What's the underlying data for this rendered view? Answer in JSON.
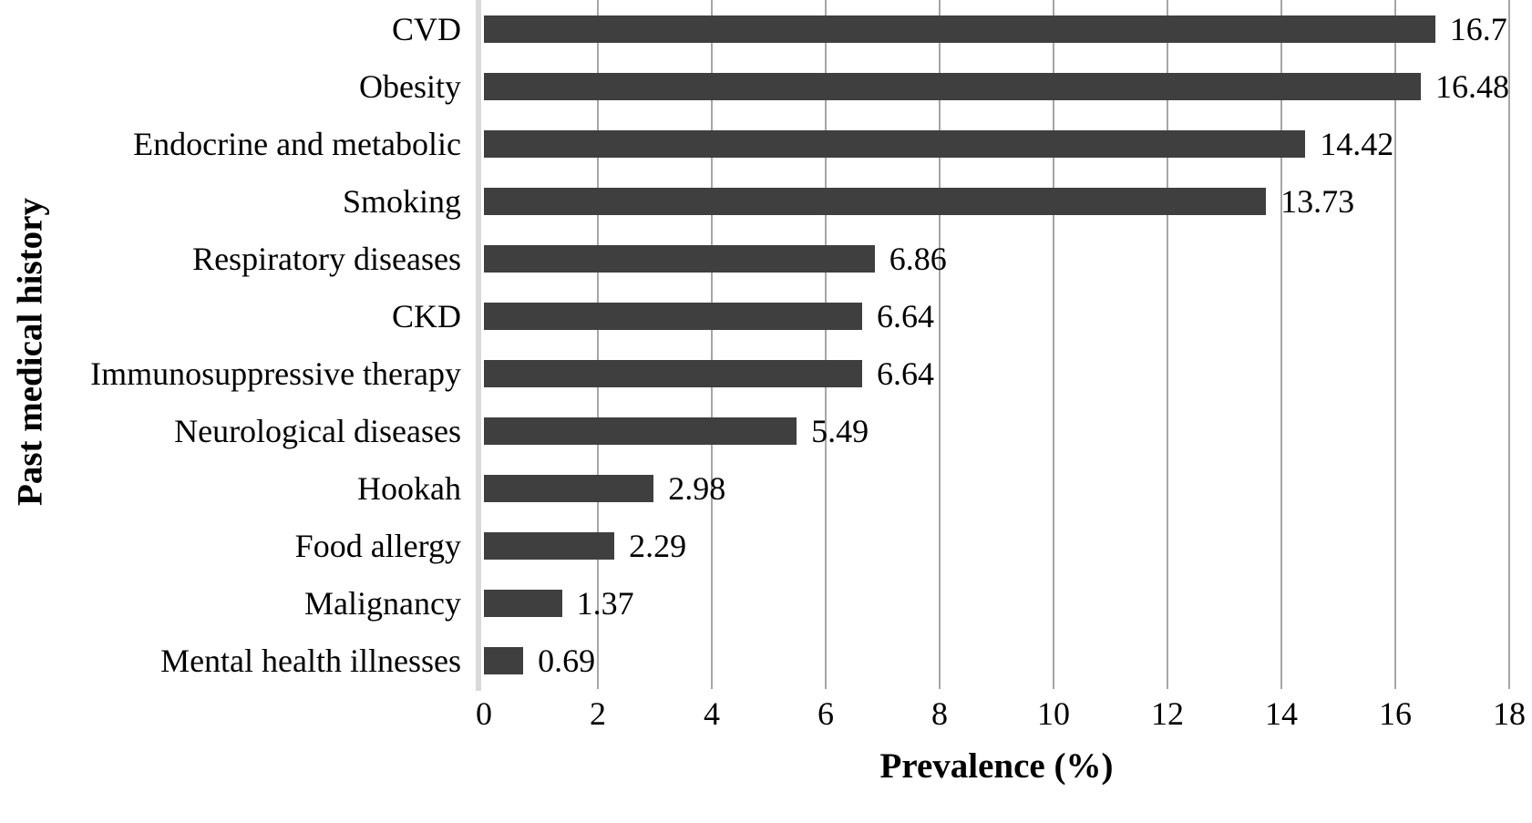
{
  "chart_data": {
    "type": "bar",
    "orientation": "horizontal",
    "title": "",
    "xlabel": "Prevalence (%)",
    "ylabel": "Past medical history",
    "categories": [
      "CVD",
      "Obesity",
      "Endocrine and metabolic",
      "Smoking",
      "Respiratory diseases",
      "CKD",
      "Immunosuppressive therapy",
      "Neurological diseases",
      "Hookah",
      "Food allergy",
      "Malignancy",
      "Mental health illnesses"
    ],
    "values": [
      16.7,
      16.48,
      14.42,
      13.73,
      6.86,
      6.64,
      6.64,
      5.49,
      2.98,
      2.29,
      1.37,
      0.69
    ],
    "value_labels": [
      "16.7",
      "16.48",
      "14.42",
      "13.73",
      "6.86",
      "6.64",
      "6.64",
      "5.49",
      "2.98",
      "2.29",
      "1.37",
      "0.69"
    ],
    "xlim": [
      0,
      18
    ],
    "xticks": [
      0,
      2,
      4,
      6,
      8,
      10,
      12,
      14,
      16,
      18
    ],
    "grid": "vertical-gridlines-on",
    "legend": "none",
    "bar_color": "#3f3f3f",
    "gridline_color": "#a6a6a6",
    "axis_line_color": "#d9d9d9",
    "text_color": "#000000",
    "background_color": "#ffffff"
  }
}
